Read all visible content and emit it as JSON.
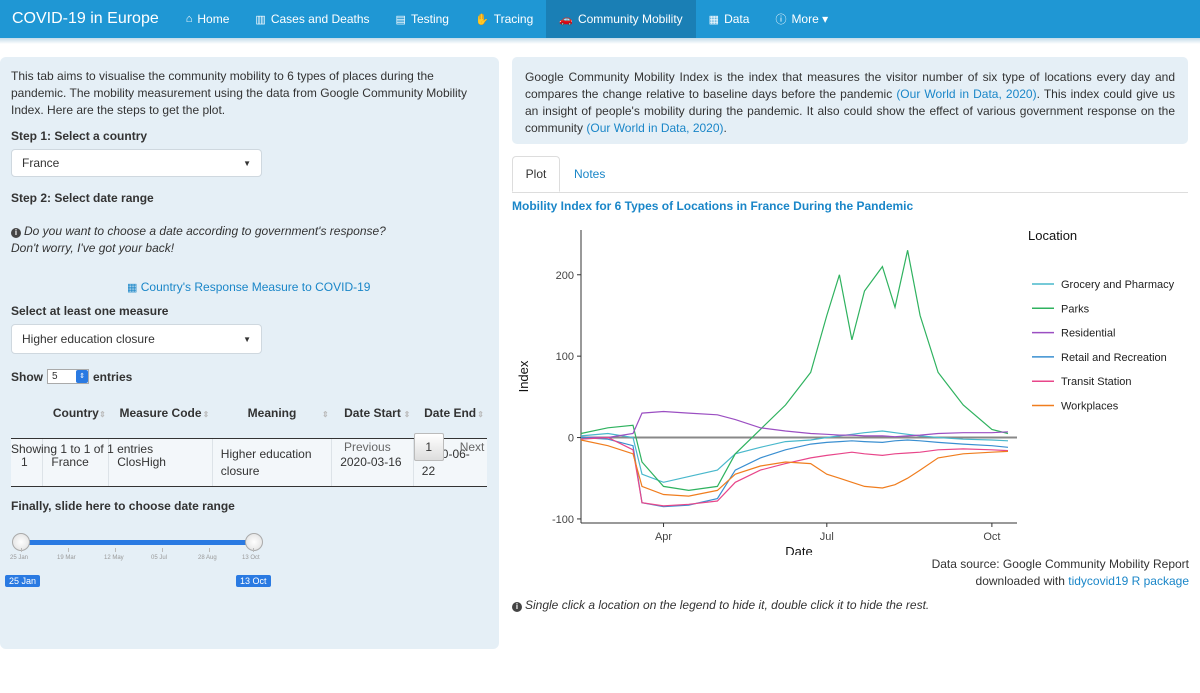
{
  "nav": {
    "brand": "COVID-19 in Europe",
    "items": [
      {
        "icon": "home-icon",
        "glyph": "⌂",
        "label": "Home",
        "active": false
      },
      {
        "icon": "bar-chart-icon",
        "glyph": "▥",
        "label": "Cases and Deaths",
        "active": false
      },
      {
        "icon": "id-card-icon",
        "glyph": "▤",
        "label": "Testing",
        "active": false
      },
      {
        "icon": "hand-icon",
        "glyph": "✋",
        "label": "Tracing",
        "active": false
      },
      {
        "icon": "car-icon",
        "glyph": "🚗",
        "label": "Community Mobility",
        "active": true
      },
      {
        "icon": "table-icon",
        "glyph": "▦",
        "label": "Data",
        "active": false
      },
      {
        "icon": "info-icon",
        "glyph": "ⓘ",
        "label": "More ▾",
        "active": false
      }
    ]
  },
  "sidebar": {
    "intro": "This tab aims to visualise the community mobility to 6 types of places during the pandemic. The mobility measurement using the data from Google Community Mobility Index. Here are the steps to get the plot.",
    "step1": "Step 1: Select a country",
    "country": "France",
    "step2": "Step 2: Select date range",
    "note_line1": "Do you want to choose a date according to government's response?",
    "note_line2": "Don't worry, I've got your back!",
    "response_title": "Country's Response Measure to COVID-19",
    "measure_label": "Select at least one measure",
    "measure": "Higher education closure",
    "show_label": "Show",
    "entries_value": "5",
    "entries_label": "entries",
    "table": {
      "headers": [
        "",
        "Country",
        "Measure Code",
        "Meaning",
        "Date Start",
        "Date End"
      ],
      "rows": [
        [
          "1",
          "France",
          "ClosHigh",
          "Higher education closure",
          "2020-03-16",
          "2020-06-22"
        ]
      ]
    },
    "showing": "Showing 1 to 1 of 1 entries",
    "pager": {
      "prev": "Previous",
      "page": "1",
      "next": "Next"
    },
    "slider_label": "Finally, slide here to choose date range",
    "slider": {
      "from": "25 Jan",
      "to": "13 Oct",
      "ticks": [
        "25 Jan",
        "19 Mar",
        "12 May",
        "05 Jul",
        "28 Aug",
        "13 Oct"
      ]
    }
  },
  "description": {
    "text1": "Google Community Mobility Index is the index that measures the visitor number of six type of locations every day and compares the change relative to baseline days before the pandemic ",
    "link1": "(Our World in Data, 2020)",
    "text2": ". This index could give us an insight of people's mobility during the pandemic. It also could show the effect of various government response on the community ",
    "link2": "(Our World in Data, 2020)",
    "text3": "."
  },
  "tabs": [
    "Plot",
    "Notes"
  ],
  "plot_title": "Mobility Index for 6 Types of Locations in France During the Pandemic",
  "source_line1": "Data source: Google Community Mobility Report",
  "source_line2_prefix": "downloaded with ",
  "source_link": "tidycovid19 R package",
  "hint": "Single click a location on the legend to hide it, double click it to hide the rest.",
  "chart_data": {
    "type": "line",
    "xlabel": "Date",
    "ylabel": "Index",
    "x_ticks": [
      "Apr",
      "Jul",
      "Oct"
    ],
    "y_ticks": [
      -100,
      0,
      100,
      200
    ],
    "ylim": [
      -105,
      255
    ],
    "xlim": [
      "2020-02-15",
      "2020-10-15"
    ],
    "legend_title": "Location",
    "legend_position": "right",
    "grid": false,
    "x": [
      "2020-02-15",
      "2020-03-01",
      "2020-03-15",
      "2020-03-20",
      "2020-04-01",
      "2020-04-15",
      "2020-05-01",
      "2020-05-11",
      "2020-05-25",
      "2020-06-08",
      "2020-06-22",
      "2020-07-01",
      "2020-07-08",
      "2020-07-15",
      "2020-07-22",
      "2020-08-01",
      "2020-08-08",
      "2020-08-15",
      "2020-08-22",
      "2020-09-01",
      "2020-09-15",
      "2020-10-01",
      "2020-10-10"
    ],
    "series": [
      {
        "name": "Grocery and Pharmacy",
        "color": "#49b8cc",
        "values": [
          2,
          5,
          0,
          -45,
          -55,
          -48,
          -40,
          -20,
          -12,
          -5,
          -3,
          0,
          2,
          4,
          6,
          8,
          6,
          4,
          2,
          0,
          -2,
          -3,
          -4
        ]
      },
      {
        "name": "Parks",
        "color": "#2fb25f",
        "values": [
          5,
          12,
          15,
          -30,
          -60,
          -65,
          -60,
          -20,
          10,
          40,
          80,
          150,
          200,
          120,
          180,
          210,
          160,
          230,
          150,
          80,
          40,
          10,
          5
        ]
      },
      {
        "name": "Residential",
        "color": "#9b4fc2",
        "values": [
          0,
          0,
          5,
          30,
          32,
          30,
          28,
          22,
          12,
          8,
          5,
          4,
          3,
          3,
          2,
          2,
          1,
          2,
          3,
          5,
          6,
          6,
          7
        ]
      },
      {
        "name": "Retail and Recreation",
        "color": "#3a8fd1",
        "values": [
          0,
          -2,
          -10,
          -80,
          -85,
          -83,
          -75,
          -40,
          -25,
          -15,
          -8,
          -6,
          -5,
          -4,
          -5,
          -6,
          -4,
          -3,
          -4,
          -6,
          -8,
          -10,
          -12
        ]
      },
      {
        "name": "Transit Station",
        "color": "#e8468a",
        "values": [
          -2,
          0,
          -15,
          -80,
          -84,
          -82,
          -78,
          -55,
          -40,
          -32,
          -25,
          -22,
          -20,
          -18,
          -20,
          -22,
          -20,
          -19,
          -18,
          -15,
          -14,
          -15,
          -16
        ]
      },
      {
        "name": "Workplaces",
        "color": "#f07d1e",
        "values": [
          -3,
          -10,
          -20,
          -60,
          -70,
          -72,
          -65,
          -45,
          -35,
          -30,
          -32,
          -45,
          -50,
          -55,
          -60,
          -62,
          -58,
          -50,
          -40,
          -25,
          -20,
          -18,
          -17
        ]
      }
    ]
  }
}
